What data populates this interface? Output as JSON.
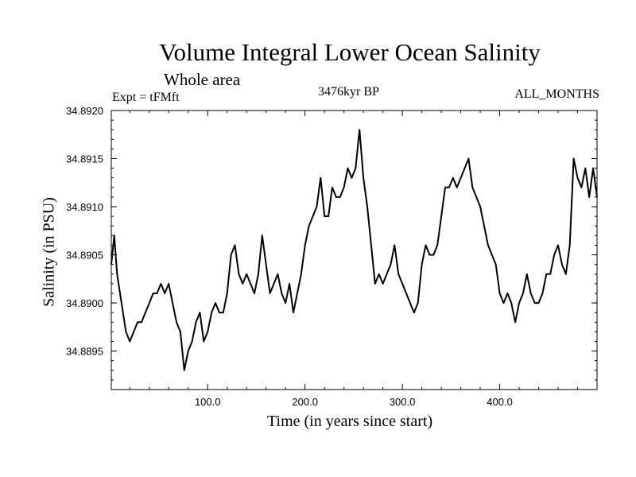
{
  "chart_data": {
    "type": "line",
    "title": "Volume Integral Lower Ocean Salinity",
    "subtitle": "Whole area",
    "experiment_label": "Expt = tFMft",
    "center_label": "3476kyr BP",
    "season_label": "ALL_MONTHS",
    "xlabel": "Time (in years since start)",
    "ylabel": "Salinity (in PSU)",
    "xlim": [
      1,
      500
    ],
    "ylim": [
      34.8891,
      34.892
    ],
    "xticks": [
      100,
      200,
      300,
      400
    ],
    "xtick_labels": [
      "100.0",
      "200.0",
      "300.0",
      "400.0"
    ],
    "yticks": [
      34.8895,
      34.89,
      34.8905,
      34.891,
      34.8915,
      34.892
    ],
    "ytick_labels": [
      "34.8895",
      "34.8900",
      "34.8905",
      "34.8910",
      "34.8915",
      "34.8920"
    ],
    "grid": false,
    "series": [
      {
        "name": "salinity",
        "x": [
          1,
          4,
          7,
          10,
          13,
          16,
          20,
          24,
          28,
          32,
          36,
          40,
          44,
          48,
          52,
          56,
          60,
          64,
          68,
          72,
          76,
          80,
          84,
          88,
          92,
          96,
          100,
          104,
          108,
          112,
          116,
          120,
          124,
          128,
          132,
          136,
          140,
          144,
          148,
          152,
          156,
          160,
          164,
          168,
          172,
          176,
          180,
          184,
          188,
          192,
          196,
          200,
          204,
          208,
          212,
          216,
          220,
          224,
          228,
          232,
          236,
          240,
          244,
          248,
          252,
          256,
          260,
          264,
          268,
          272,
          276,
          280,
          284,
          288,
          292,
          296,
          300,
          304,
          308,
          312,
          316,
          320,
          324,
          328,
          332,
          336,
          340,
          344,
          348,
          352,
          356,
          360,
          364,
          368,
          372,
          376,
          380,
          384,
          388,
          392,
          396,
          400,
          404,
          408,
          412,
          416,
          420,
          424,
          428,
          432,
          436,
          440,
          444,
          448,
          452,
          456,
          460,
          464,
          468,
          472,
          476,
          480,
          484,
          488,
          492,
          496,
          500
        ],
        "values": [
          34.8904,
          34.8907,
          34.8903,
          34.8901,
          34.8899,
          34.8897,
          34.8896,
          34.8897,
          34.8898,
          34.8898,
          34.8899,
          34.89,
          34.8901,
          34.8901,
          34.8902,
          34.8901,
          34.8902,
          34.89,
          34.8898,
          34.8897,
          34.8893,
          34.8895,
          34.8896,
          34.8898,
          34.8899,
          34.8896,
          34.8897,
          34.8899,
          34.89,
          34.8899,
          34.8899,
          34.8901,
          34.8905,
          34.8906,
          34.8903,
          34.8902,
          34.8903,
          34.8902,
          34.8901,
          34.8903,
          34.8907,
          34.8904,
          34.8901,
          34.8902,
          34.8903,
          34.8901,
          34.89,
          34.8902,
          34.8899,
          34.8901,
          34.8903,
          34.8906,
          34.8908,
          34.8909,
          34.891,
          34.8913,
          34.8909,
          34.8909,
          34.8912,
          34.8911,
          34.8911,
          34.8912,
          34.8914,
          34.8913,
          34.8914,
          34.8918,
          34.8913,
          34.891,
          34.8906,
          34.8902,
          34.8903,
          34.8902,
          34.8903,
          34.8904,
          34.8906,
          34.8903,
          34.8902,
          34.8901,
          34.89,
          34.8899,
          34.89,
          34.8904,
          34.8906,
          34.8905,
          34.8905,
          34.8906,
          34.8909,
          34.8912,
          34.8912,
          34.8913,
          34.8912,
          34.8913,
          34.8914,
          34.8915,
          34.8912,
          34.8911,
          34.891,
          34.8908,
          34.8906,
          34.8905,
          34.8904,
          34.8901,
          34.89,
          34.8901,
          34.89,
          34.8898,
          34.89,
          34.8901,
          34.8903,
          34.8901,
          34.89,
          34.89,
          34.8901,
          34.8903,
          34.8903,
          34.8905,
          34.8906,
          34.8904,
          34.8903,
          34.8906,
          34.8915,
          34.8913,
          34.8912,
          34.8914,
          34.8911,
          34.8914,
          34.8911
        ]
      }
    ]
  }
}
